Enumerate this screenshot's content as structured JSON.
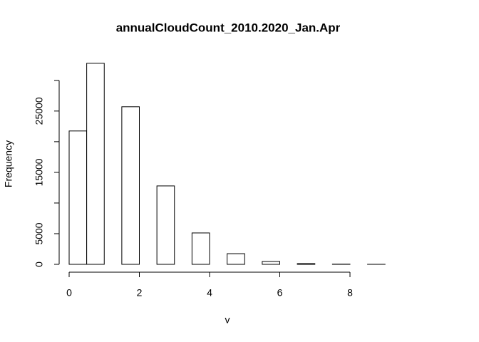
{
  "chart_data": {
    "type": "histogram",
    "title": "annualCloudCount_2010.2020_Jan.Apr",
    "xlabel": "v",
    "ylabel": "Frequency",
    "bins": [
      0,
      0.5,
      1,
      1.5,
      2,
      2.5,
      3,
      3.5,
      4,
      4.5,
      5,
      5.5,
      6,
      6.5,
      7,
      7.5,
      8,
      8.5,
      9
    ],
    "values": [
      21750,
      32790,
      0,
      25700,
      0,
      12790,
      0,
      5120,
      0,
      1740,
      0,
      470,
      0,
      120,
      0,
      30,
      0,
      5
    ],
    "color": "#ffffff",
    "xlim": [
      0,
      9
    ],
    "xticks": [
      0,
      2,
      4,
      6,
      8
    ],
    "ylim": [
      0,
      33000
    ],
    "yticks": [
      0,
      5000,
      {
        "value": 10000,
        "label": null
      },
      15000,
      {
        "value": 20000,
        "label": null
      },
      25000,
      {
        "value": 30000,
        "label": null
      }
    ]
  }
}
